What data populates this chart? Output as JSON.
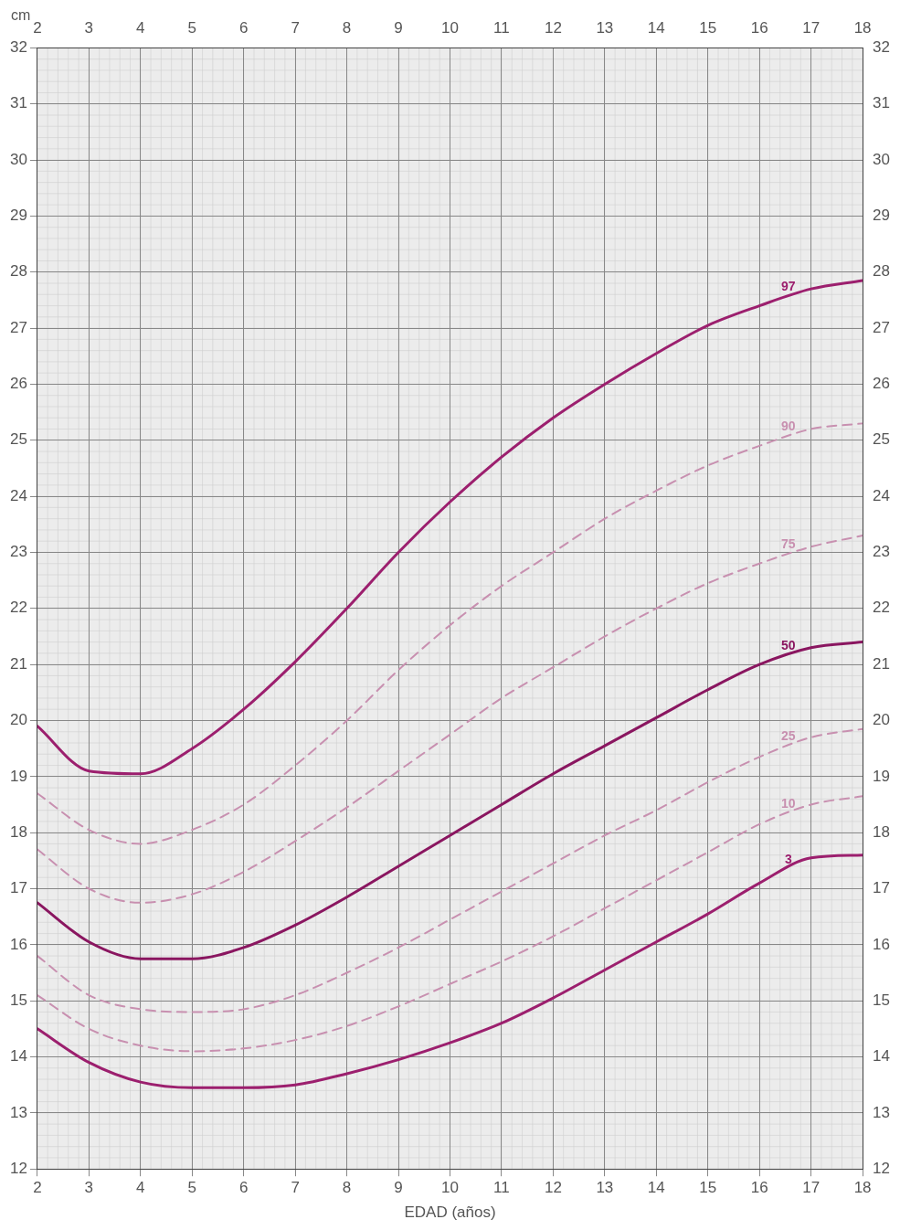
{
  "chart_data": {
    "type": "line",
    "xlabel": "EDAD (años)",
    "ylabel": "cm",
    "x": [
      2,
      3,
      4,
      5,
      6,
      7,
      8,
      9,
      10,
      11,
      12,
      13,
      14,
      15,
      16,
      17,
      18
    ],
    "xlim": [
      2,
      18
    ],
    "xticks": [
      2,
      3,
      4,
      5,
      6,
      7,
      8,
      9,
      10,
      11,
      12,
      13,
      14,
      15,
      16,
      17,
      18
    ],
    "x2lim": [
      2,
      18
    ],
    "x2ticks": [
      2,
      3,
      4,
      5,
      6,
      7,
      8,
      9,
      10,
      11,
      12,
      13,
      14,
      15,
      16,
      17,
      18
    ],
    "ylim": [
      12,
      32
    ],
    "yticks": [
      12,
      13,
      14,
      15,
      16,
      17,
      18,
      19,
      20,
      21,
      22,
      23,
      24,
      25,
      26,
      27,
      28,
      29,
      30,
      31,
      32
    ],
    "y2lim": [
      12,
      32
    ],
    "y2ticks": [
      12,
      13,
      14,
      15,
      16,
      17,
      18,
      19,
      20,
      21,
      22,
      23,
      24,
      25,
      26,
      27,
      28,
      29,
      30,
      31,
      32
    ],
    "grid": true,
    "legend": false,
    "marker": "none",
    "series": [
      {
        "name": "97",
        "color": "#9c1f6e",
        "line_style": "solid",
        "values": [
          19.9,
          19.1,
          19.05,
          19.5,
          20.2,
          21.05,
          22.0,
          23.0,
          23.9,
          24.7,
          25.4,
          26.0,
          26.55,
          27.05,
          27.4,
          27.7,
          27.85
        ]
      },
      {
        "name": "90",
        "color": "#c890b0",
        "line_style": "dashed",
        "values": [
          18.7,
          18.05,
          17.8,
          18.05,
          18.5,
          19.2,
          20.0,
          20.9,
          21.7,
          22.4,
          23.0,
          23.6,
          24.1,
          24.55,
          24.9,
          25.2,
          25.3
        ]
      },
      {
        "name": "75",
        "color": "#c890b0",
        "line_style": "dashed",
        "values": [
          17.7,
          17.0,
          16.75,
          16.9,
          17.3,
          17.85,
          18.45,
          19.1,
          19.75,
          20.4,
          20.95,
          21.5,
          22.0,
          22.45,
          22.8,
          23.1,
          23.3
        ]
      },
      {
        "name": "50",
        "color": "#8a1660",
        "line_style": "solid",
        "values": [
          16.75,
          16.05,
          15.75,
          15.75,
          15.95,
          16.35,
          16.85,
          17.4,
          17.95,
          18.5,
          19.05,
          19.55,
          20.05,
          20.55,
          21.0,
          21.3,
          21.4
        ]
      },
      {
        "name": "25",
        "color": "#c890b0",
        "line_style": "dashed",
        "values": [
          15.8,
          15.1,
          14.85,
          14.8,
          14.85,
          15.1,
          15.5,
          15.95,
          16.45,
          16.95,
          17.45,
          17.95,
          18.4,
          18.9,
          19.35,
          19.7,
          19.85
        ]
      },
      {
        "name": "10",
        "color": "#c890b0",
        "line_style": "dashed",
        "values": [
          15.1,
          14.5,
          14.2,
          14.1,
          14.15,
          14.3,
          14.55,
          14.9,
          15.3,
          15.7,
          16.15,
          16.65,
          17.15,
          17.65,
          18.15,
          18.5,
          18.65
        ]
      },
      {
        "name": "3",
        "color": "#9c1f6e",
        "line_style": "solid",
        "values": [
          14.5,
          13.9,
          13.55,
          13.45,
          13.45,
          13.5,
          13.7,
          13.95,
          14.25,
          14.6,
          15.05,
          15.55,
          16.05,
          16.55,
          17.1,
          17.55,
          17.6
        ]
      }
    ]
  }
}
